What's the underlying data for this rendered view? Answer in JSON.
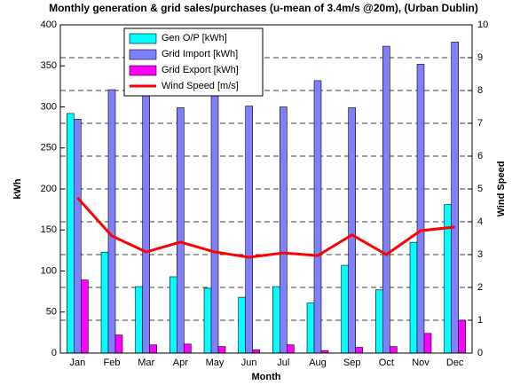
{
  "chart_data": {
    "type": "bar_line",
    "title": "Monthly generation & grid sales/purchases (u-mean of 3.4m/s @20m), (Urban Dublin)",
    "xlabel": "Month",
    "ylabel": "kWh",
    "y2label": "Wind Speed",
    "categories": [
      "Jan",
      "Feb",
      "Mar",
      "Apr",
      "May",
      "Jun",
      "Jul",
      "Aug",
      "Sep",
      "Oct",
      "Nov",
      "Dec"
    ],
    "series": [
      {
        "name": "Gen O/P [kWh]",
        "type": "bar",
        "color": "#00ffff",
        "values": [
          292,
          123,
          81,
          93,
          79,
          68,
          81,
          61,
          107,
          77,
          135,
          181
        ]
      },
      {
        "name": "Grid Import [kWh]",
        "type": "bar",
        "color": "#8080ff",
        "values": [
          285,
          321,
          330,
          299,
          318,
          301,
          300,
          332,
          299,
          374,
          352,
          379
        ]
      },
      {
        "name": "Grid Export [kWh]",
        "type": "bar",
        "color": "#ff00ff",
        "values": [
          89,
          22,
          10,
          11,
          8,
          4,
          10,
          3,
          7,
          8,
          24,
          40
        ]
      },
      {
        "name": "Wind Speed [m/s]",
        "type": "line",
        "axis": "y2",
        "color": "#ff0000",
        "values": [
          4.73,
          3.57,
          3.08,
          3.38,
          3.08,
          2.92,
          3.05,
          2.97,
          3.6,
          3.0,
          3.73,
          3.84
        ]
      }
    ],
    "ylim": [
      0,
      400
    ],
    "yticks": [
      0,
      50,
      100,
      150,
      200,
      250,
      300,
      350,
      400
    ],
    "y2lim": [
      0,
      10
    ],
    "y2ticks": [
      0,
      1,
      2,
      3,
      4,
      5,
      6,
      7,
      8,
      9,
      10
    ],
    "grid": true,
    "legend": "upper left"
  }
}
